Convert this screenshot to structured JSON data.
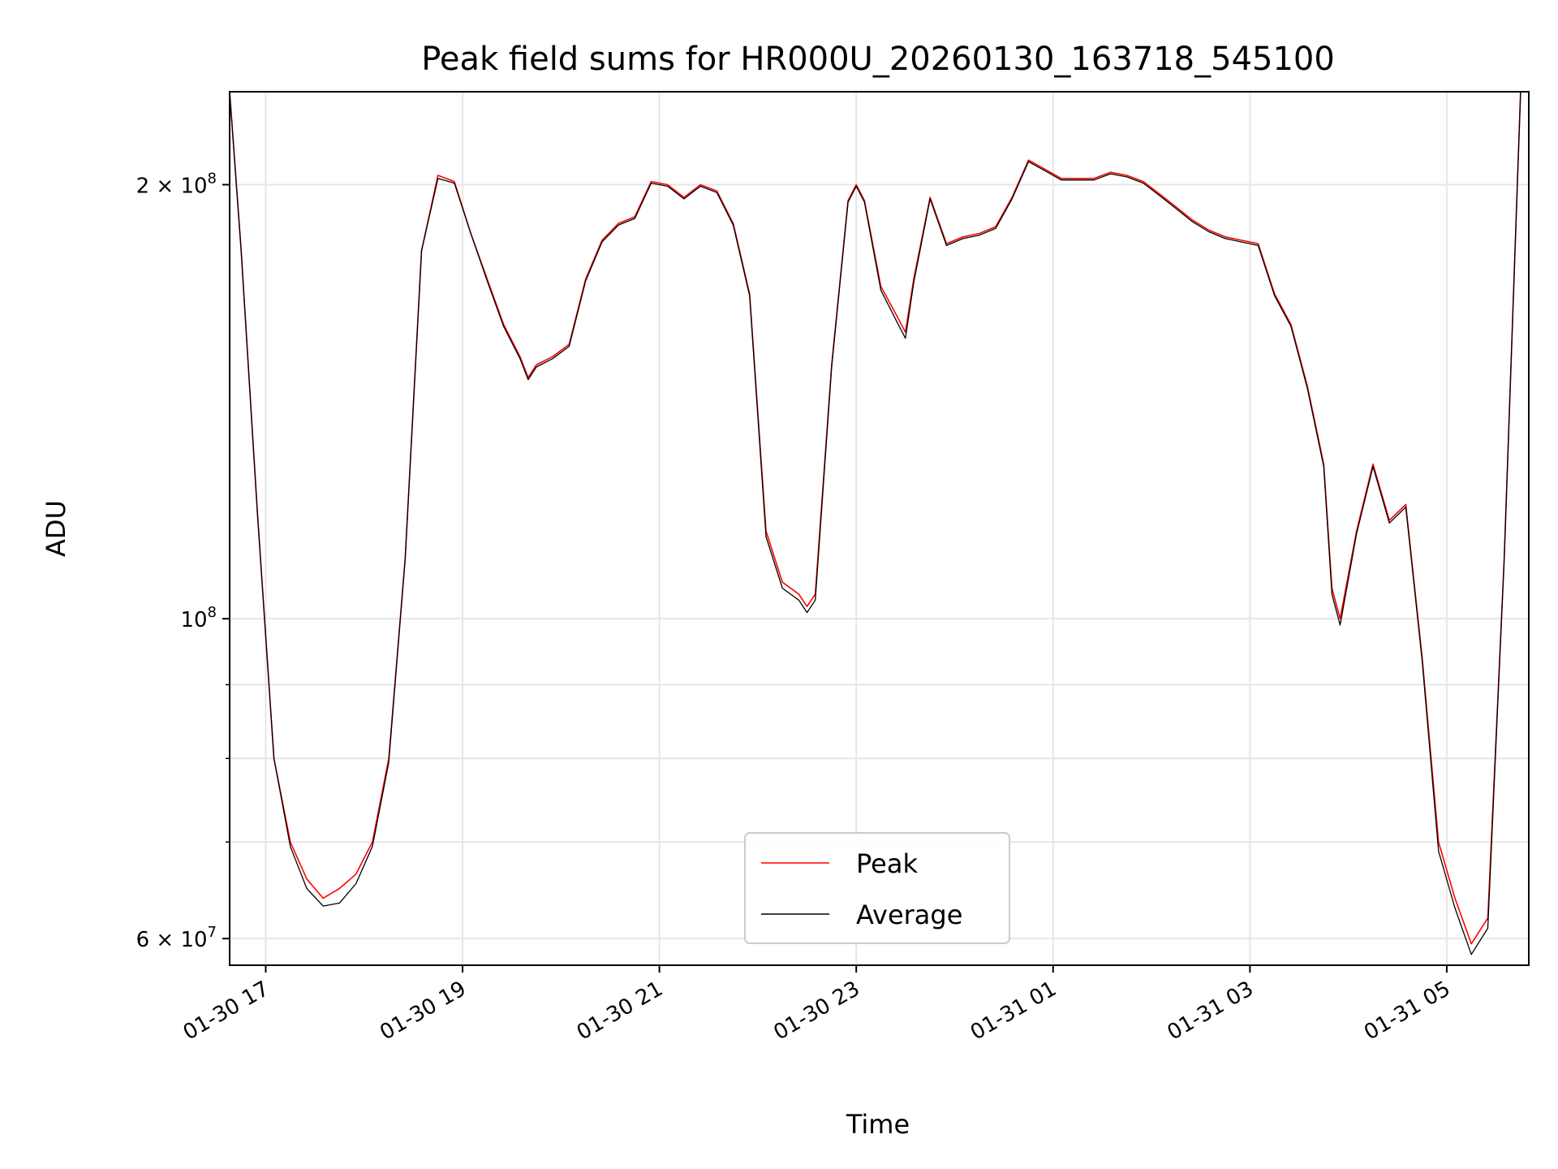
{
  "chart_data": {
    "type": "line",
    "title": "Peak field sums for HR000U_20260130_163718_545100",
    "xlabel": "Time",
    "ylabel": "ADU",
    "y_scale": "log",
    "xlim": [
      "01-30 16:38",
      "01-31 05:50"
    ],
    "ylim": [
      57500000,
      232000000
    ],
    "grid": true,
    "legend_position": "lower center",
    "x_ticks": [
      "01-30 17",
      "01-30 19",
      "01-30 21",
      "01-30 23",
      "01-31 01",
      "01-31 03",
      "01-31 05"
    ],
    "y_tick_labels": [
      {
        "value": 60000000,
        "mantissa": "6",
        "exponent": "7"
      },
      {
        "value": 100000000,
        "mantissa": "",
        "exponent": "8"
      },
      {
        "value": 200000000,
        "mantissa": "2",
        "exponent": "8"
      }
    ],
    "y_minor_ticks": [
      70000000,
      80000000,
      90000000
    ],
    "x": [
      "01-30 16:38",
      "01-30 16:45",
      "01-30 16:55",
      "01-30 17:05",
      "01-30 17:15",
      "01-30 17:25",
      "01-30 17:35",
      "01-30 17:45",
      "01-30 17:55",
      "01-30 18:05",
      "01-30 18:15",
      "01-30 18:25",
      "01-30 18:35",
      "01-30 18:45",
      "01-30 18:55",
      "01-30 19:05",
      "01-30 19:15",
      "01-30 19:25",
      "01-30 19:35",
      "01-30 19:40",
      "01-30 19:45",
      "01-30 19:55",
      "01-30 20:05",
      "01-30 20:15",
      "01-30 20:25",
      "01-30 20:35",
      "01-30 20:45",
      "01-30 20:55",
      "01-30 21:05",
      "01-30 21:15",
      "01-30 21:25",
      "01-30 21:35",
      "01-30 21:45",
      "01-30 21:55",
      "01-30 22:05",
      "01-30 22:15",
      "01-30 22:25",
      "01-30 22:30",
      "01-30 22:35",
      "01-30 22:45",
      "01-30 22:55",
      "01-30 23:00",
      "01-30 23:05",
      "01-30 23:15",
      "01-30 23:25",
      "01-30 23:30",
      "01-30 23:35",
      "01-30 23:45",
      "01-30 23:55",
      "01-31 00:05",
      "01-31 00:15",
      "01-31 00:25",
      "01-31 00:35",
      "01-31 00:45",
      "01-31 00:55",
      "01-31 01:05",
      "01-31 01:15",
      "01-31 01:25",
      "01-31 01:35",
      "01-31 01:45",
      "01-31 01:55",
      "01-31 02:05",
      "01-31 02:15",
      "01-31 02:25",
      "01-31 02:35",
      "01-31 02:45",
      "01-31 02:55",
      "01-31 03:05",
      "01-31 03:15",
      "01-31 03:25",
      "01-31 03:35",
      "01-31 03:45",
      "01-31 03:50",
      "01-31 03:55",
      "01-31 04:05",
      "01-31 04:15",
      "01-31 04:25",
      "01-31 04:35",
      "01-31 04:45",
      "01-31 04:55",
      "01-31 05:05",
      "01-31 05:15",
      "01-31 05:25",
      "01-31 05:35",
      "01-31 05:45"
    ],
    "series": [
      {
        "name": "Peak",
        "color": "#ff0000",
        "values": [
          232000000,
          180000000,
          118000000,
          80000000,
          70000000,
          66000000,
          64000000,
          65000000,
          66500000,
          70000000,
          80000000,
          110000000,
          180000000,
          203000000,
          201000000,
          185000000,
          172000000,
          160000000,
          152000000,
          147000000,
          150000000,
          152000000,
          155000000,
          172000000,
          183000000,
          188000000,
          190000000,
          201000000,
          200000000,
          196000000,
          200000000,
          198000000,
          188000000,
          168000000,
          115000000,
          106000000,
          104000000,
          102000000,
          104000000,
          150000000,
          195000000,
          200000000,
          195000000,
          170000000,
          162000000,
          158000000,
          172000000,
          196000000,
          182000000,
          184000000,
          185000000,
          187000000,
          196000000,
          208000000,
          205000000,
          202000000,
          202000000,
          202000000,
          204000000,
          203000000,
          201000000,
          197000000,
          193000000,
          189000000,
          186000000,
          184000000,
          183000000,
          182000000,
          168000000,
          160000000,
          145000000,
          128000000,
          105000000,
          100000000,
          115000000,
          128000000,
          117000000,
          120000000,
          94000000,
          70000000,
          64000000,
          59500000,
          62000000,
          110000000,
          232000000
        ]
      },
      {
        "name": "Average",
        "color": "#000000",
        "values": [
          232000000,
          180000000,
          118000000,
          80000000,
          69500000,
          65000000,
          63200000,
          63500000,
          65500000,
          69500000,
          79500000,
          110000000,
          180000000,
          202000000,
          200500000,
          185000000,
          171500000,
          159500000,
          151500000,
          146500000,
          149500000,
          151500000,
          154500000,
          171500000,
          182500000,
          187500000,
          189500000,
          200500000,
          199500000,
          195500000,
          199500000,
          197500000,
          187500000,
          167500000,
          114000000,
          105000000,
          103000000,
          101000000,
          103000000,
          149500000,
          194500000,
          199500000,
          194500000,
          169000000,
          160500000,
          156500000,
          171000000,
          195500000,
          181500000,
          183500000,
          184500000,
          186500000,
          195500000,
          207500000,
          204500000,
          201500000,
          201500000,
          201500000,
          203500000,
          202500000,
          200500000,
          196500000,
          192500000,
          188500000,
          185500000,
          183500000,
          182500000,
          181500000,
          167500000,
          159500000,
          144500000,
          127500000,
          104000000,
          99000000,
          114500000,
          127500000,
          116500000,
          119500000,
          93500000,
          69000000,
          63000000,
          58500000,
          61000000,
          110000000,
          232000000
        ]
      }
    ]
  }
}
